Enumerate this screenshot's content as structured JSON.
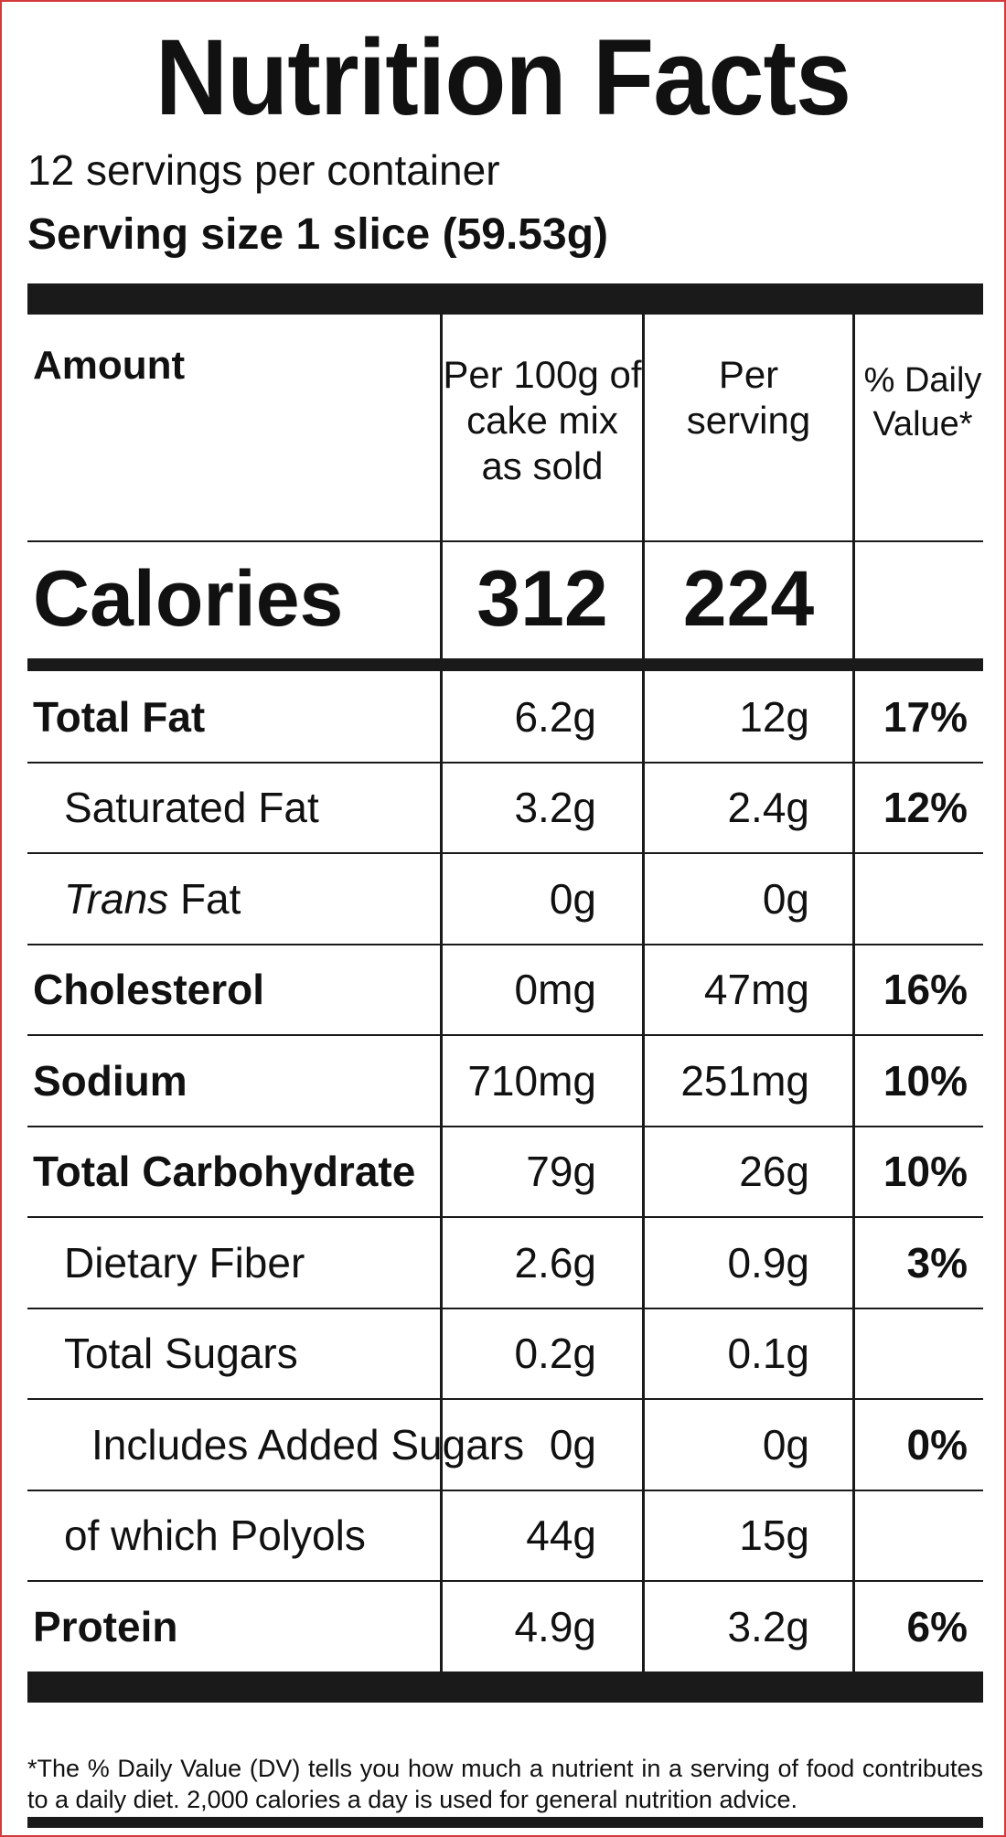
{
  "label": {
    "title": "Nutrition Facts",
    "servings_per_container": "12 servings per container",
    "serving_size": "Serving size 1 slice (59.53g)"
  },
  "header": {
    "amount": "Amount",
    "per_100g": [
      "Per 100g of",
      "cake mix",
      "as sold"
    ],
    "per_serving": [
      "Per",
      "serving"
    ],
    "daily_value": [
      "% Daily",
      "Value*"
    ]
  },
  "calories": {
    "label": "Calories",
    "per_100g": "312",
    "per_serving": "224"
  },
  "nutrients": [
    {
      "label": "Total Fat",
      "per_100g": "6.2g",
      "per_serving": "12g",
      "dv": "17%"
    },
    {
      "label": "Saturated Fat",
      "per_100g": "3.2g",
      "per_serving": "2.4g",
      "dv": "12%"
    },
    {
      "label_italic": "Trans",
      "label": " Fat",
      "per_100g": "0g",
      "per_serving": "0g",
      "dv": ""
    },
    {
      "label": "Cholesterol",
      "per_100g": "0mg",
      "per_serving": "47mg",
      "dv": "16%"
    },
    {
      "label": "Sodium",
      "per_100g": "710mg",
      "per_serving": "251mg",
      "dv": "10%"
    },
    {
      "label": "Total Carbohydrate",
      "per_100g": "79g",
      "per_serving": "26g",
      "dv": "10%"
    },
    {
      "label": "Dietary Fiber",
      "per_100g": "2.6g",
      "per_serving": "0.9g",
      "dv": "3%"
    },
    {
      "label": "Total Sugars",
      "per_100g": "0.2g",
      "per_serving": "0.1g",
      "dv": ""
    },
    {
      "label": "Includes Added Sugars",
      "per_100g": "0g",
      "per_serving": "0g",
      "dv": "0%"
    },
    {
      "label": "of which Polyols",
      "per_100g": "44g",
      "per_serving": "15g",
      "dv": ""
    },
    {
      "label": "Protein",
      "per_100g": "4.9g",
      "per_serving": "3.2g",
      "dv": "6%"
    }
  ],
  "footnote": "*The % Daily Value (DV) tells you how much a nutrient in a serving of food contributes to a daily diet. 2,000 calories a day is used for general nutrition advice.",
  "colors": {
    "border": "#d43a3a",
    "ink": "#111111"
  }
}
